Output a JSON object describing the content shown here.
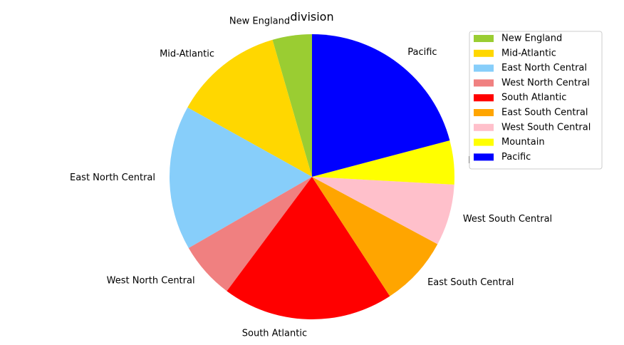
{
  "chart_data": {
    "type": "pie",
    "title": "division",
    "categories": [
      "New England",
      "Mid-Atlantic",
      "East North Central",
      "West North Central",
      "South Atlantic",
      "East South Central",
      "West South Central",
      "Mountain",
      "Pacific"
    ],
    "values": [
      4.5,
      12.5,
      16.5,
      6.5,
      19.5,
      8.0,
      7.0,
      5.0,
      21.0
    ],
    "colors": [
      "#9acd32",
      "#ffd700",
      "#87cefa",
      "#f08080",
      "#ff0000",
      "#ffa500",
      "#ffc0cb",
      "#ffff00",
      "#0000ff"
    ],
    "start_angle": 90,
    "direction": "counterclockwise",
    "legend": "top-right"
  }
}
